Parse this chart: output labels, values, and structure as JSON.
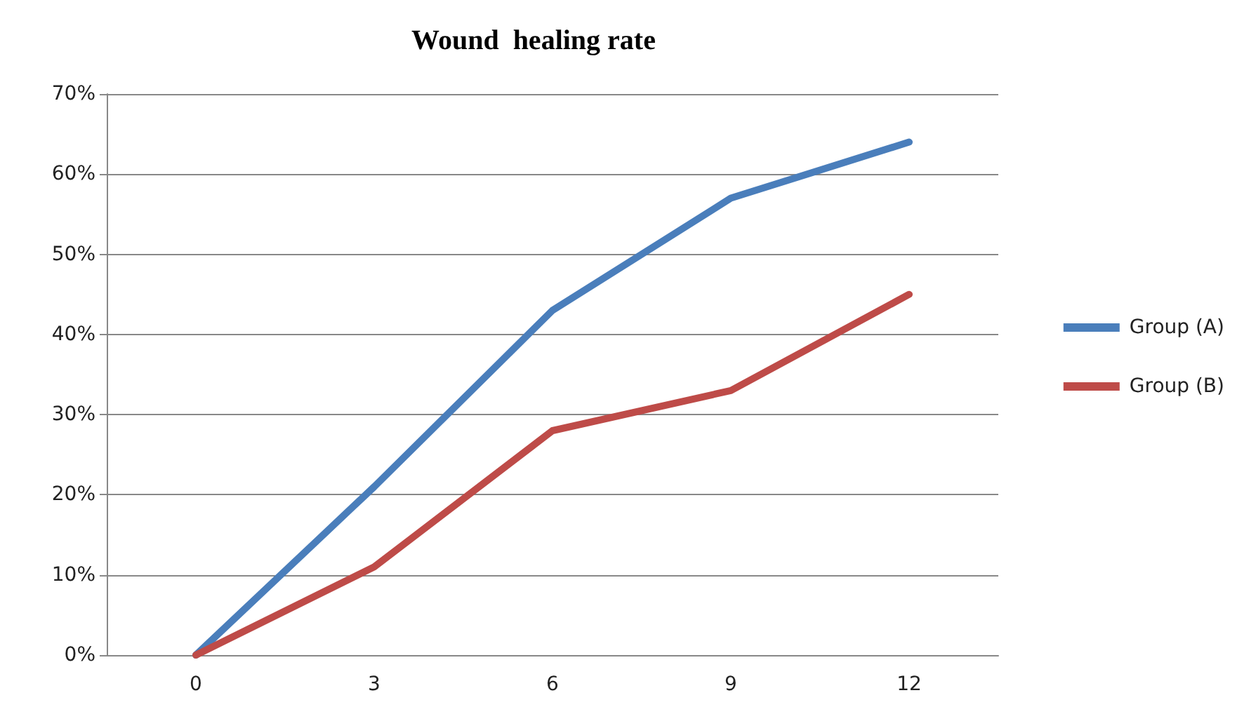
{
  "chart_data": {
    "type": "line",
    "title": "Wound  healing rate",
    "categories": [
      "0",
      "3",
      "6",
      "9",
      "12"
    ],
    "series": [
      {
        "name": "Group (A)",
        "color": "#4a7ebb",
        "values": [
          0,
          21,
          43,
          57,
          64
        ]
      },
      {
        "name": "Group (B)",
        "color": "#be4b48",
        "values": [
          0,
          11,
          28,
          33,
          45
        ]
      }
    ],
    "ylim": [
      0,
      70
    ],
    "yticks": [
      {
        "value": 0,
        "label": "0%"
      },
      {
        "value": 10,
        "label": "10%"
      },
      {
        "value": 20,
        "label": "20%"
      },
      {
        "value": 30,
        "label": "30%"
      },
      {
        "value": 40,
        "label": "40%"
      },
      {
        "value": 50,
        "label": "50%"
      },
      {
        "value": 60,
        "label": "60%"
      },
      {
        "value": 70,
        "label": "70%"
      }
    ],
    "grid": "y",
    "legend": "right",
    "marker": "none",
    "line_style": "solid"
  }
}
